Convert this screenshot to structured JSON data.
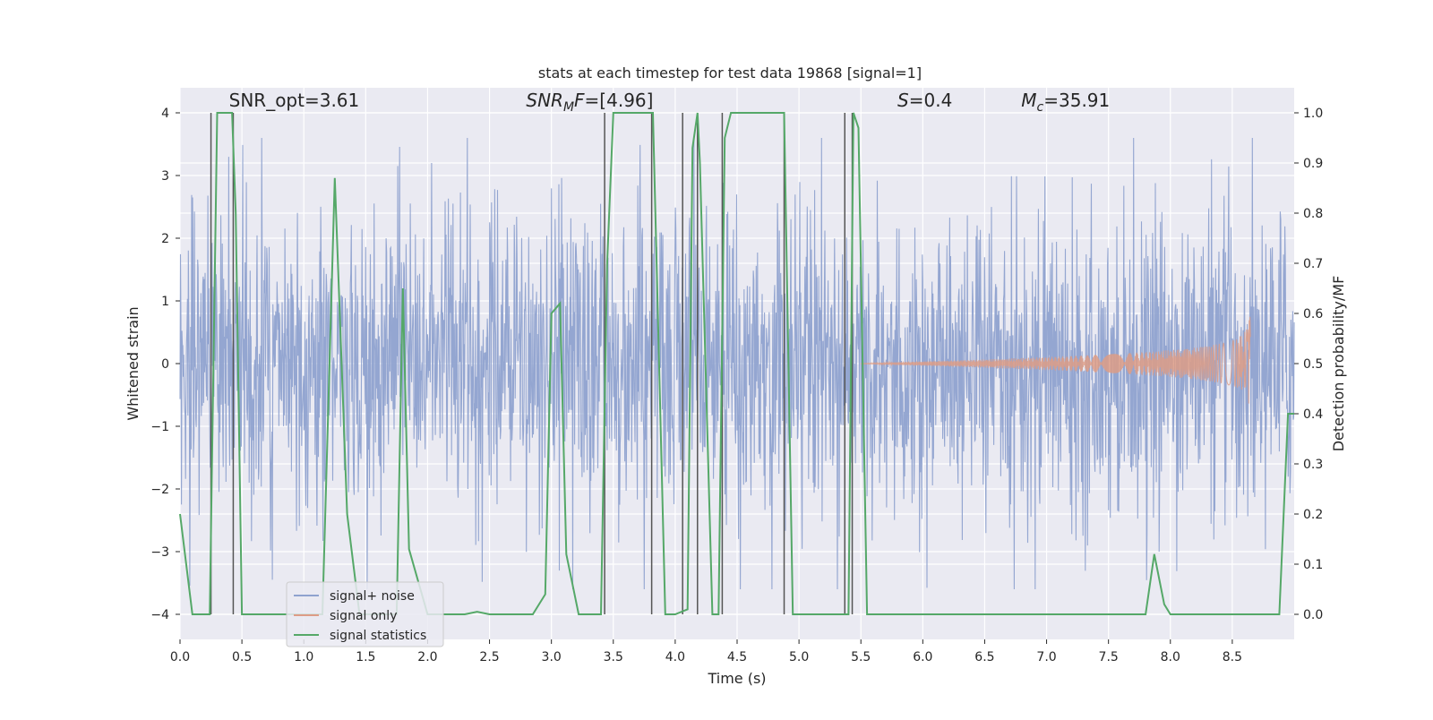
{
  "chart_data": {
    "type": "line",
    "title": "stats at each timestep for test data 19868 [signal=1]",
    "xlabel": "Time (s)",
    "ylabel": "Whitened strain",
    "y2label": "Detection probability/MF",
    "xlim": [
      0.0,
      9.0
    ],
    "ylim": [
      -4.4,
      4.4
    ],
    "y2lim": [
      -0.05,
      1.05
    ],
    "grid": true,
    "xticks": [
      0.0,
      0.5,
      1.0,
      1.5,
      2.0,
      2.5,
      3.0,
      3.5,
      4.0,
      4.5,
      5.0,
      5.5,
      6.0,
      6.5,
      7.0,
      7.5,
      8.0,
      8.5
    ],
    "xtick_labels": [
      "0.0",
      "0.5",
      "1.0",
      "1.5",
      "2.0",
      "2.5",
      "3.0",
      "3.5",
      "4.0",
      "4.5",
      "5.0",
      "5.5",
      "6.0",
      "6.5",
      "7.0",
      "7.5",
      "8.0",
      "8.5"
    ],
    "yticks": [
      -4,
      -3,
      -2,
      -1,
      0,
      1,
      2,
      3,
      4
    ],
    "ytick_labels": [
      "−4",
      "−3",
      "−2",
      "−1",
      "0",
      "1",
      "2",
      "3",
      "4"
    ],
    "y2ticks": [
      0.0,
      0.1,
      0.2,
      0.3,
      0.4,
      0.5,
      0.6,
      0.7,
      0.8,
      0.9,
      1.0
    ],
    "y2tick_labels": [
      "0.0",
      "0.1",
      "0.2",
      "0.3",
      "0.4",
      "0.5",
      "0.6",
      "0.7",
      "0.8",
      "0.9",
      "1.0"
    ],
    "annotations": [
      {
        "text": "SNR_opt=3.61",
        "x": 0.2,
        "y": 4.1
      },
      {
        "text": "SNR",
        "sub": "M",
        "rest": "F=[4.96]",
        "italic_part": "SNR_M",
        "x": 2.6,
        "y": 4.1
      },
      {
        "text": "S",
        "rest": "=0.4",
        "x": 5.6,
        "y": 4.1
      },
      {
        "text": "M",
        "sub": "c",
        "rest": "=35.91",
        "x": 6.6,
        "y": 4.1
      }
    ],
    "legend": {
      "position": "lower-left",
      "entries": [
        {
          "label": "signal+ noise",
          "color": "#8fa2cf"
        },
        {
          "label": "signal only",
          "color": "#dd9c86"
        },
        {
          "label": "signal statistics",
          "color": "#55a868"
        }
      ]
    },
    "series": [
      {
        "name": "signal+ noise",
        "axis": "left",
        "color": "#8fa2cf",
        "style": "dense noise, typical envelope ±2, peaks to ±3.5",
        "x_range": [
          0.0,
          9.0
        ],
        "envelope": 2.0,
        "peak": 3.6
      },
      {
        "name": "signal only",
        "axis": "left",
        "color": "#dd9c86",
        "style": "chirp",
        "x_range": [
          5.5,
          8.65
        ],
        "peak_amplitude": 0.95,
        "merger_time": 8.65
      },
      {
        "name": "signal statistics",
        "axis": "right",
        "color": "#55a868",
        "x": [
          0.0,
          0.05,
          0.1,
          0.24,
          0.3,
          0.42,
          0.45,
          0.5,
          1.0,
          1.15,
          1.25,
          1.35,
          1.45,
          1.75,
          1.8,
          1.85,
          2.0,
          2.3,
          2.4,
          2.5,
          2.7,
          2.85,
          2.95,
          3.0,
          3.07,
          3.12,
          3.22,
          3.4,
          3.45,
          3.5,
          3.82,
          3.92,
          4.0,
          4.1,
          4.14,
          4.18,
          4.2,
          4.3,
          4.35,
          4.4,
          4.45,
          4.5,
          4.88,
          4.95,
          5.0,
          5.05,
          5.35,
          5.4,
          5.44,
          5.48,
          5.55,
          5.6,
          7.8,
          7.87,
          7.95,
          8.0,
          8.88,
          8.95,
          9.0
        ],
        "values": [
          0.2,
          0.1,
          0.0,
          0.0,
          1.0,
          1.0,
          0.8,
          0.0,
          0.0,
          0.0,
          0.87,
          0.2,
          0.0,
          0.0,
          0.65,
          0.13,
          0.0,
          0.0,
          0.005,
          0.0,
          0.0,
          0.0,
          0.04,
          0.6,
          0.62,
          0.12,
          0.0,
          0.0,
          0.7,
          1.0,
          1.0,
          0.0,
          0.0,
          0.01,
          0.93,
          1.0,
          0.9,
          0.0,
          0.0,
          0.95,
          1.0,
          1.0,
          1.0,
          0.0,
          0.0,
          0.0,
          0.0,
          0.0,
          1.0,
          0.97,
          0.0,
          0.0,
          0.0,
          0.12,
          0.02,
          0.0,
          0.0,
          0.4,
          0.4
        ]
      }
    ],
    "vertical_lines": {
      "color": "#555555",
      "x": [
        0.25,
        0.43,
        3.43,
        3.81,
        4.06,
        4.18,
        4.38,
        4.88,
        5.37,
        5.43
      ]
    }
  }
}
